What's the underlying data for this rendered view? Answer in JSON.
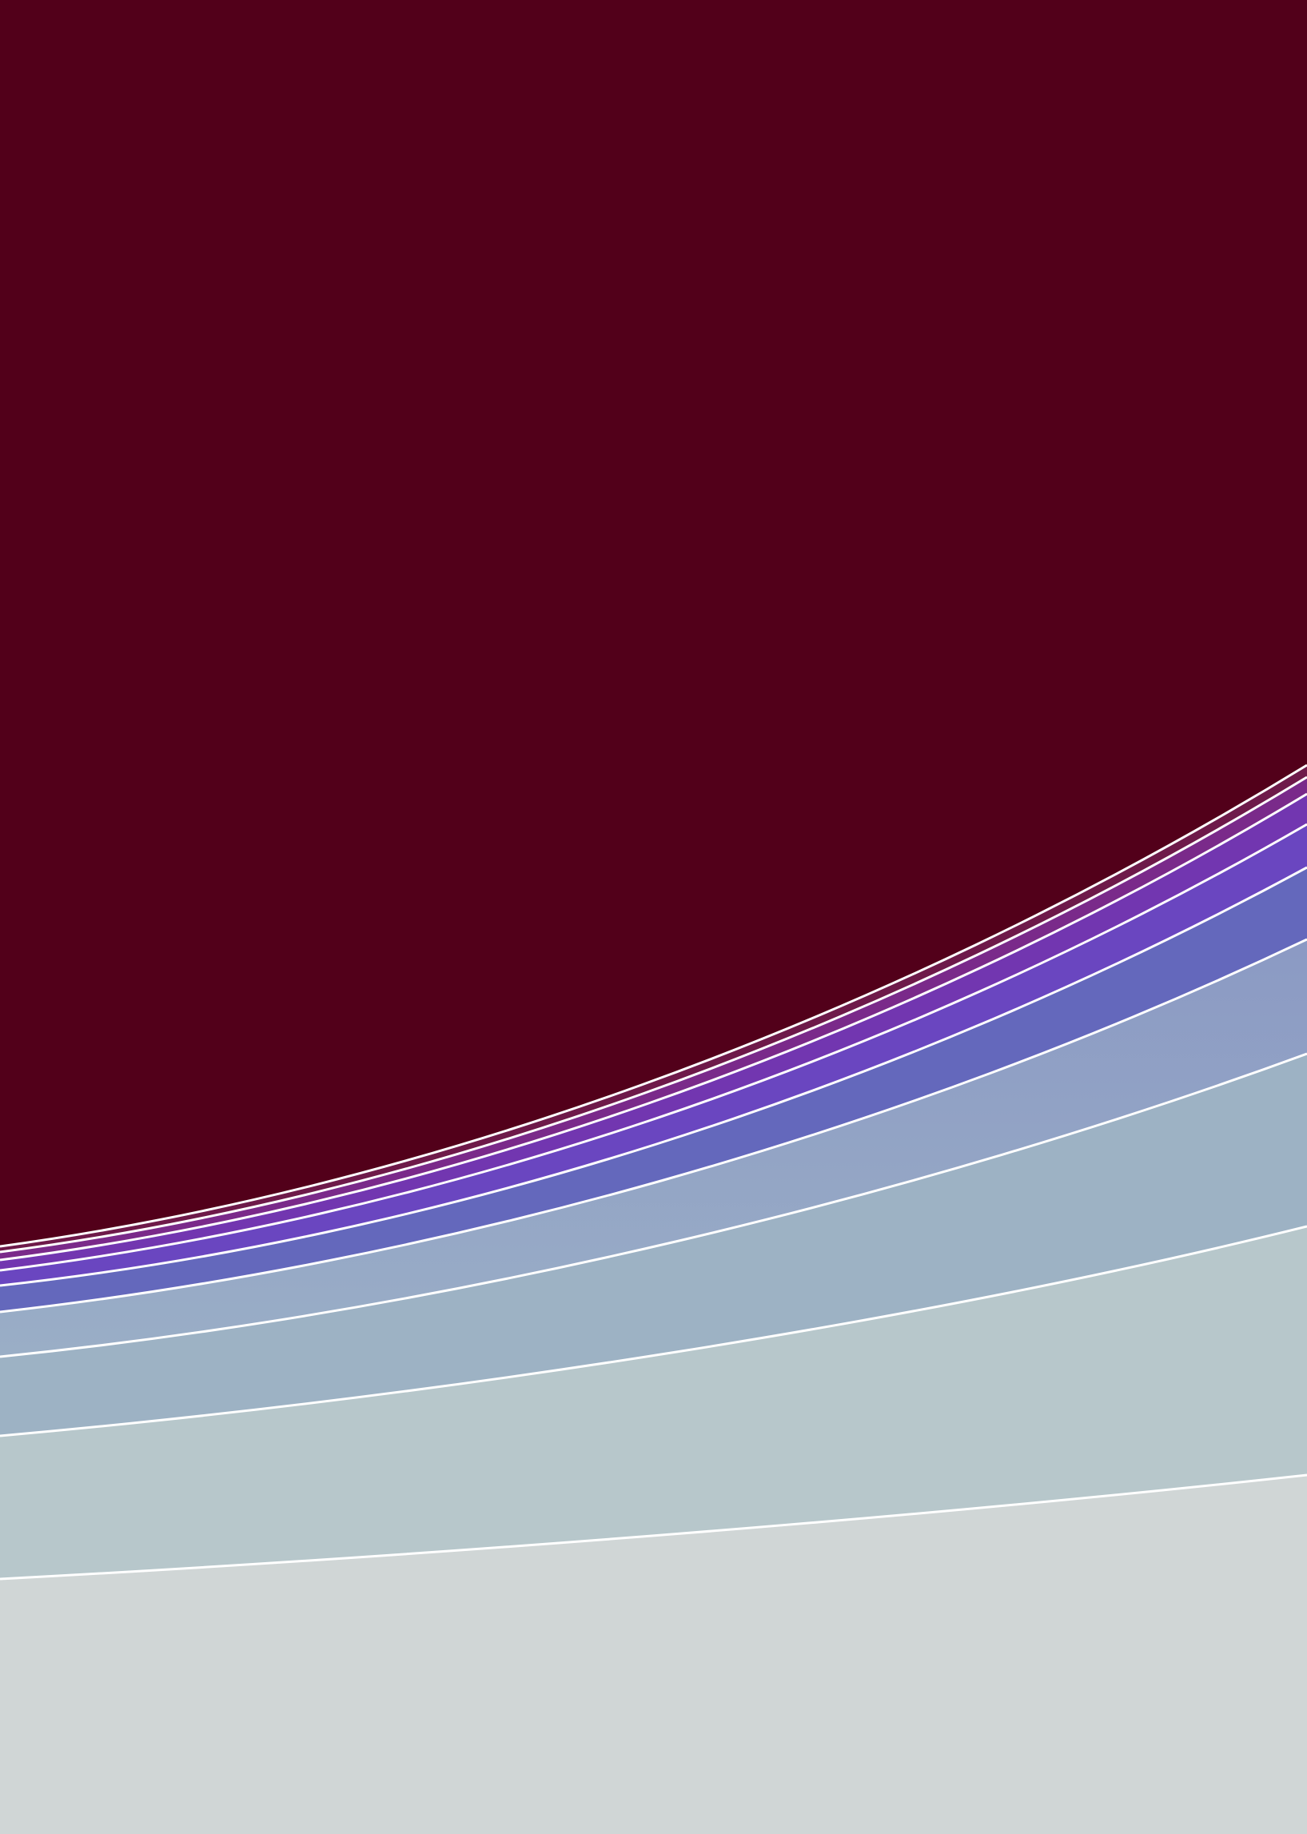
{
  "background": {
    "top_color": "#52001a",
    "bottom_color": "#d0d6d6",
    "divider_color": "#ffffff"
  },
  "bands": [
    {
      "name": "band-maroon",
      "color": "#52001a"
    },
    {
      "name": "band-plum-1",
      "color": "#6e1a4a"
    },
    {
      "name": "band-plum-2",
      "color": "#7a2a8a"
    },
    {
      "name": "band-violet",
      "color": "#7236b0"
    },
    {
      "name": "band-indigo",
      "color": "#6a46c0"
    },
    {
      "name": "band-periwinkle",
      "color": "#6468bc"
    },
    {
      "name": "band-slate-blue",
      "color": "#8294be"
    },
    {
      "name": "band-steel-blue",
      "color": "#9db2c4"
    },
    {
      "name": "band-pale-slate",
      "color": "#b7c7cb"
    },
    {
      "name": "band-light-gray",
      "color": "#d0d6d6"
    }
  ]
}
